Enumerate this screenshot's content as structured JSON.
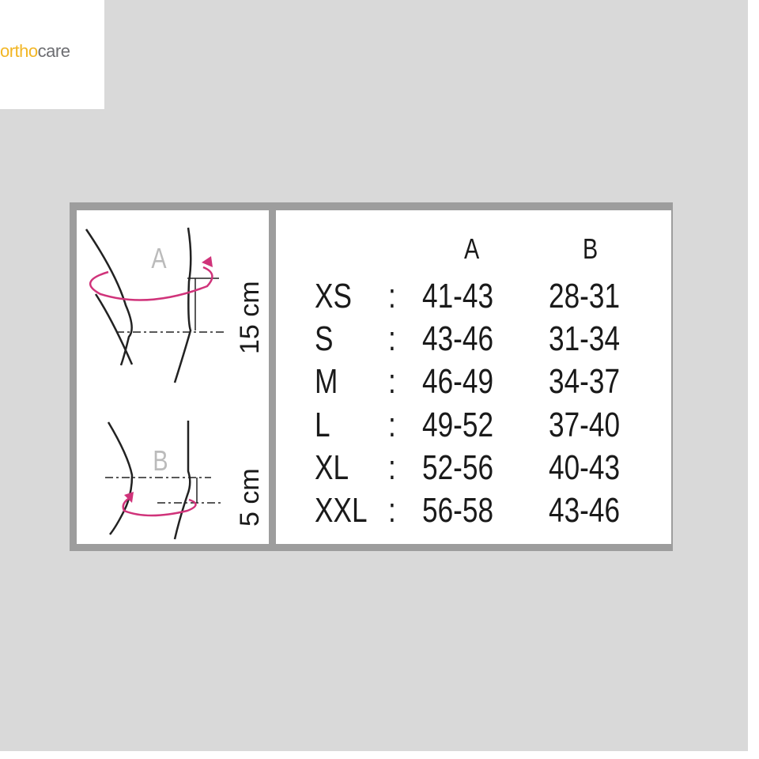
{
  "logo": {
    "part1": "ortho",
    "part2": "care",
    "colors": {
      "ortho": "#f2b625",
      "care": "#6d6e72"
    }
  },
  "diagram": {
    "label_a": "A",
    "label_b": "B",
    "dim_a": "15 cm",
    "dim_b": "5 cm",
    "arrow_color": "#d0337a"
  },
  "table": {
    "headers": [
      "A",
      "B"
    ],
    "rows": [
      {
        "size": "XS",
        "a": "41-43",
        "b": "28-31"
      },
      {
        "size": "S",
        "a": "43-46",
        "b": "31-34"
      },
      {
        "size": "M",
        "a": "46-49",
        "b": "34-37"
      },
      {
        "size": "L",
        "a": "49-52",
        "b": "37-40"
      },
      {
        "size": "XL",
        "a": "52-56",
        "b": "40-43"
      },
      {
        "size": "XXL",
        "a": "56-58",
        "b": "43-46"
      }
    ],
    "separator": ":"
  }
}
